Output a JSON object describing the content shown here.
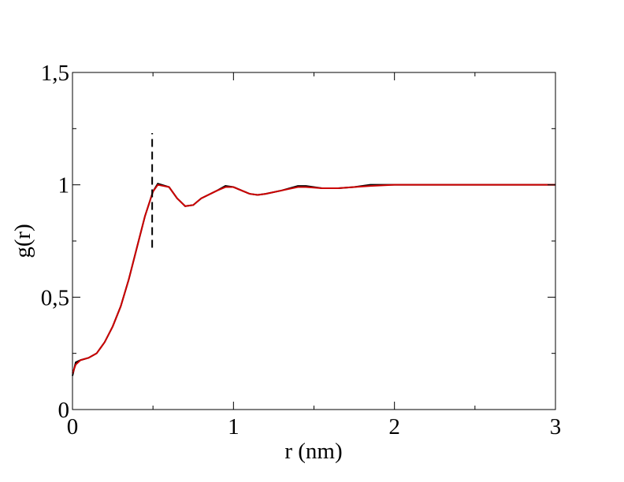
{
  "chart_data": {
    "type": "line",
    "xlabel": "r (nm)",
    "ylabel": "g(r)",
    "x": [
      0,
      0.02,
      0.05,
      0.1,
      0.15,
      0.2,
      0.25,
      0.3,
      0.35,
      0.4,
      0.45,
      0.5,
      0.53,
      0.6,
      0.65,
      0.7,
      0.75,
      0.8,
      0.9,
      0.95,
      1.0,
      1.05,
      1.1,
      1.15,
      1.2,
      1.3,
      1.4,
      1.45,
      1.55,
      1.65,
      1.75,
      1.85,
      2.0,
      2.25,
      2.5,
      2.75,
      3.0
    ],
    "series": [
      {
        "color": "#000000",
        "values": [
          0.15,
          0.21,
          0.22,
          0.23,
          0.25,
          0.3,
          0.37,
          0.46,
          0.58,
          0.72,
          0.86,
          0.97,
          1.005,
          0.99,
          0.94,
          0.905,
          0.91,
          0.94,
          0.975,
          0.995,
          0.99,
          0.975,
          0.96,
          0.955,
          0.96,
          0.975,
          0.995,
          0.995,
          0.985,
          0.985,
          0.99,
          1.0,
          1.0,
          1.0,
          1.0,
          1.0,
          1.0
        ]
      },
      {
        "color": "#cc0000",
        "values": [
          0.16,
          0.2,
          0.22,
          0.23,
          0.25,
          0.3,
          0.37,
          0.46,
          0.58,
          0.72,
          0.86,
          0.97,
          1.0,
          0.99,
          0.94,
          0.905,
          0.91,
          0.94,
          0.975,
          0.99,
          0.99,
          0.975,
          0.96,
          0.955,
          0.96,
          0.975,
          0.99,
          0.99,
          0.985,
          0.985,
          0.99,
          0.995,
          1.0,
          1.0,
          1.0,
          1.0,
          1.0
        ]
      }
    ],
    "vline": {
      "x": 0.495,
      "y": [
        0.72,
        1.23
      ]
    },
    "xlim": [
      0,
      3
    ],
    "ylim": [
      0,
      1.5
    ],
    "xticks": [
      0,
      1,
      2,
      3
    ],
    "xticks_minor": [
      0.5,
      1.5,
      2.5
    ],
    "yticks": [
      0,
      {
        "value": 0.5,
        "label": "0,5"
      },
      1,
      {
        "value": 1.5,
        "label": "1,5"
      }
    ],
    "yticks_minor": [
      0.25,
      0.75,
      1.25
    ]
  }
}
